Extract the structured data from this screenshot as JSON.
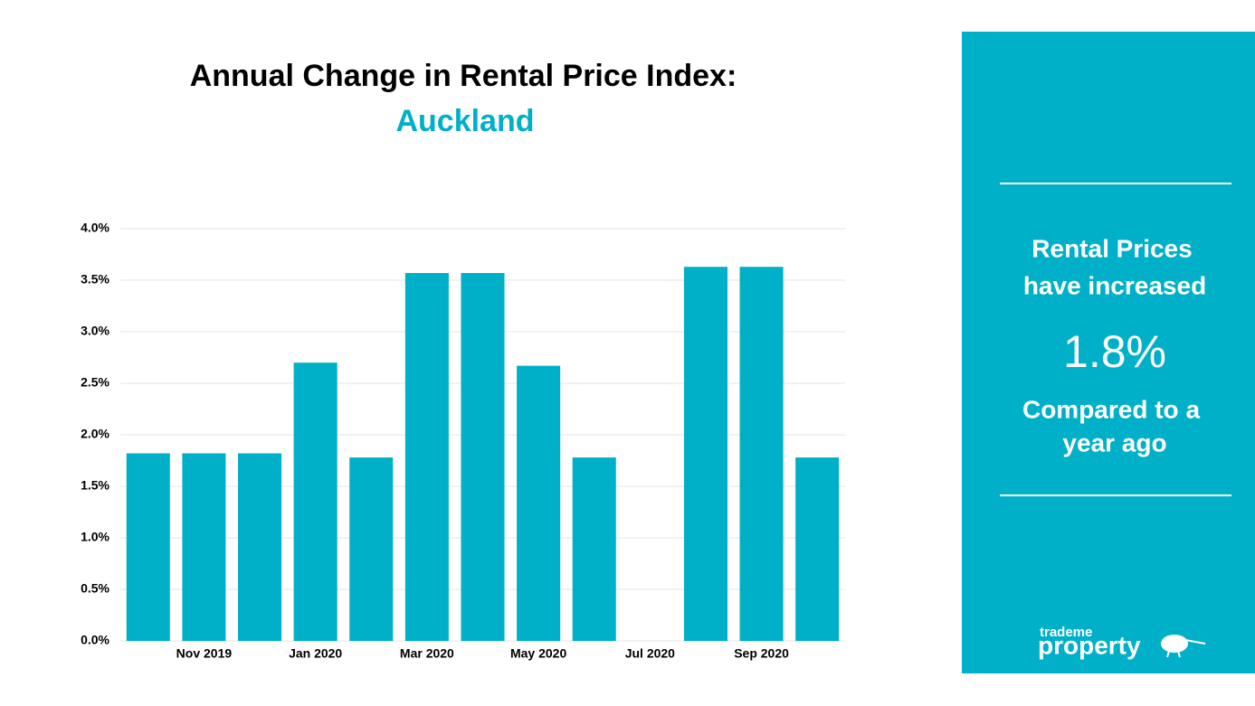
{
  "chart_data": {
    "type": "bar",
    "title": "Annual Change in Rental Price Index:",
    "subtitle": "Auckland",
    "categories": [
      null,
      "Nov 2019",
      null,
      "Jan 2020",
      null,
      "Mar 2020",
      null,
      "May 2020",
      null,
      "Jul 2020",
      null,
      "Sep 2020",
      null
    ],
    "values": [
      1.82,
      1.82,
      1.82,
      2.7,
      1.78,
      3.57,
      3.57,
      2.67,
      1.78,
      0,
      3.63,
      3.63,
      1.78
    ],
    "color": "#00b0c8",
    "ylim": [
      0,
      4
    ],
    "yticks": [
      {
        "value": 0,
        "label": "0.0%"
      },
      {
        "value": 0.5,
        "label": "0.5%"
      },
      {
        "value": 1,
        "label": "1.0%"
      },
      {
        "value": 1.5,
        "label": "1.5%"
      },
      {
        "value": 2,
        "label": "2.0%"
      },
      {
        "value": 2.5,
        "label": "2.5%"
      },
      {
        "value": 3,
        "label": "3.0%"
      },
      {
        "value": 3.5,
        "label": "3.5%"
      },
      {
        "value": 4,
        "label": "4.0%"
      }
    ],
    "grid": true
  },
  "panel": {
    "heading_line1": "Rental Prices",
    "heading_line2": "have increased",
    "value": "1.8%",
    "footer_line1": "Compared to a",
    "footer_line2": "year ago",
    "logo_top": "trademe",
    "logo_bottom": "property"
  }
}
